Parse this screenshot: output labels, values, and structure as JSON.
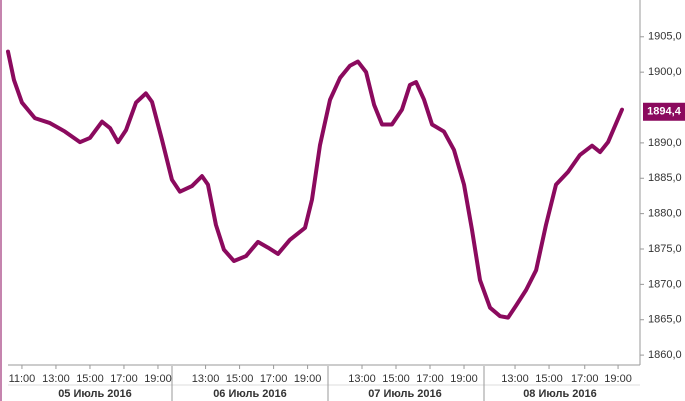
{
  "chart_data": {
    "type": "line",
    "x": [
      -0.82,
      -0.47,
      0,
      0.76,
      1.65,
      2.53,
      3.41,
      4,
      4.71,
      5.18,
      5.65,
      6.12,
      6.71,
      7.29,
      7.65,
      8.24,
      8.82,
      9.29,
      10,
      10.59,
      10.94,
      11.41,
      11.88,
      12.47,
      13.18,
      13.88,
      14.47,
      15.06,
      15.76,
      16.65,
      17.06,
      17.53,
      18.12,
      18.71,
      19.29,
      19.76,
      20.24,
      20.71,
      21.18,
      21.76,
      22.35,
      22.82,
      23.18,
      23.65,
      24.12,
      24.82,
      25.41,
      26,
      26.47,
      26.94,
      27.53,
      28.12,
      28.59,
      29.06,
      29.65,
      30.24,
      30.82,
      31.41,
      32.12,
      32.82,
      33.53,
      34,
      34.47,
      35.29
    ],
    "series": [
      {
        "color": "#8b0a5e",
        "values": [
          1902.9,
          1898.9,
          1895.7,
          1893.5,
          1892.8,
          1891.6,
          1890.1,
          1890.7,
          1893.0,
          1892.1,
          1890.1,
          1891.8,
          1895.7,
          1897.0,
          1895.8,
          1890.4,
          1884.8,
          1883.1,
          1883.9,
          1885.3,
          1884.1,
          1878.4,
          1874.9,
          1873.3,
          1874.0,
          1876.0,
          1875.2,
          1874.3,
          1876.3,
          1878.0,
          1882.0,
          1889.7,
          1896.1,
          1899.2,
          1900.9,
          1901.5,
          1900.0,
          1895.4,
          1892.6,
          1892.6,
          1894.7,
          1898.2,
          1898.6,
          1896.1,
          1892.6,
          1891.6,
          1889.0,
          1884.1,
          1877.7,
          1870.6,
          1866.7,
          1865.5,
          1865.3,
          1867.0,
          1869.2,
          1872.0,
          1878.4,
          1884.1,
          1885.9,
          1888.3,
          1889.6,
          1888.7,
          1890.1,
          1894.7
        ]
      }
    ],
    "xlim": [
      -0.82,
      36.35
    ],
    "xticks": [
      {
        "value": 0,
        "label": "11:00"
      },
      {
        "value": 2,
        "label": "13:00"
      },
      {
        "value": 4,
        "label": "15:00"
      },
      {
        "value": 6,
        "label": "17:00"
      },
      {
        "value": 8,
        "label": "19:00"
      },
      {
        "value": 10.8,
        "label": "13:00"
      },
      {
        "value": 12.8,
        "label": "15:00"
      },
      {
        "value": 14.8,
        "label": "17:00"
      },
      {
        "value": 16.8,
        "label": "19:00"
      },
      {
        "value": 20,
        "label": "13:00"
      },
      {
        "value": 22,
        "label": "15:00"
      },
      {
        "value": 24,
        "label": "17:00"
      },
      {
        "value": 26,
        "label": "19:00"
      },
      {
        "value": 29,
        "label": "13:00"
      },
      {
        "value": 31,
        "label": "15:00"
      },
      {
        "value": 33.1,
        "label": "17:00"
      },
      {
        "value": 35.06,
        "label": "19:00"
      }
    ],
    "days": [
      "05 Июль 2016",
      "06 Июль 2016",
      "07 Июль 2016",
      "08 Июль 2016"
    ],
    "ylim": [
      1858.6,
      1910.2
    ],
    "yticks": [
      {
        "value": 1905,
        "label": "1905,0"
      },
      {
        "value": 1900,
        "label": "1900,0"
      },
      {
        "value": 1890,
        "label": "1890,0"
      },
      {
        "value": 1885,
        "label": "1885,0"
      },
      {
        "value": 1880,
        "label": "1880,0"
      },
      {
        "value": 1875,
        "label": "1875,0"
      },
      {
        "value": 1870,
        "label": "1870,0"
      },
      {
        "value": 1865,
        "label": "1865,0"
      },
      {
        "value": 1860,
        "label": "1860,0"
      }
    ],
    "last_price": {
      "value": 1894.4,
      "label": "1894,4"
    }
  }
}
